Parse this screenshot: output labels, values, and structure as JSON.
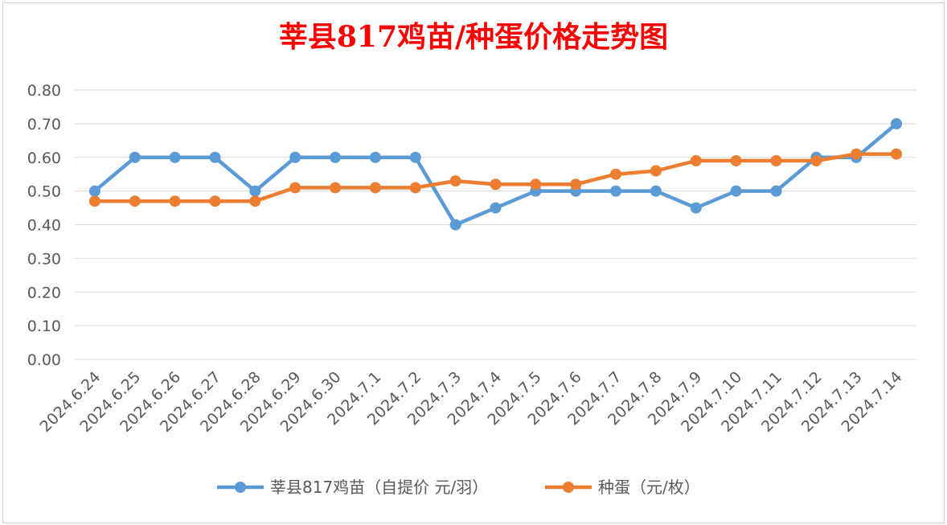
{
  "chart_data": {
    "type": "line",
    "title": "莘县817鸡苗/种蛋价格走势图",
    "title_color": "#FF0000",
    "xlabel": "",
    "ylabel": "",
    "ylim": [
      0,
      0.8
    ],
    "yticks": [
      "0.00",
      "0.10",
      "0.20",
      "0.30",
      "0.40",
      "0.50",
      "0.60",
      "0.70",
      "0.80"
    ],
    "grid": true,
    "legend_position": "bottom",
    "categories": [
      "2024.6.24",
      "2024.6.25",
      "2024.6.26",
      "2024.6.27",
      "2024.6.28",
      "2024.6.29",
      "2024.6.30",
      "2024.7.1",
      "2024.7.2",
      "2024.7.3",
      "2024.7.4",
      "2024.7.5",
      "2024.7.6",
      "2024.7.7",
      "2024.7.8",
      "2024.7.9",
      "2024.7.10",
      "2024.7.11",
      "2024.7.12",
      "2024.7.13",
      "2024.7.14"
    ],
    "series": [
      {
        "name": "莘县817鸡苗（自提价 元/羽）",
        "color": "#5B9BD5",
        "values": [
          0.5,
          0.6,
          0.6,
          0.6,
          0.5,
          0.6,
          0.6,
          0.6,
          0.6,
          0.4,
          0.45,
          0.5,
          0.5,
          0.5,
          0.5,
          0.45,
          0.5,
          0.5,
          0.6,
          0.6,
          0.7
        ]
      },
      {
        "name": "种蛋（元/枚）",
        "color": "#ED7D31",
        "values": [
          0.47,
          0.47,
          0.47,
          0.47,
          0.47,
          0.51,
          0.51,
          0.51,
          0.51,
          0.53,
          0.52,
          0.52,
          0.52,
          0.55,
          0.56,
          0.59,
          0.59,
          0.59,
          0.59,
          0.61,
          0.61
        ]
      }
    ]
  }
}
